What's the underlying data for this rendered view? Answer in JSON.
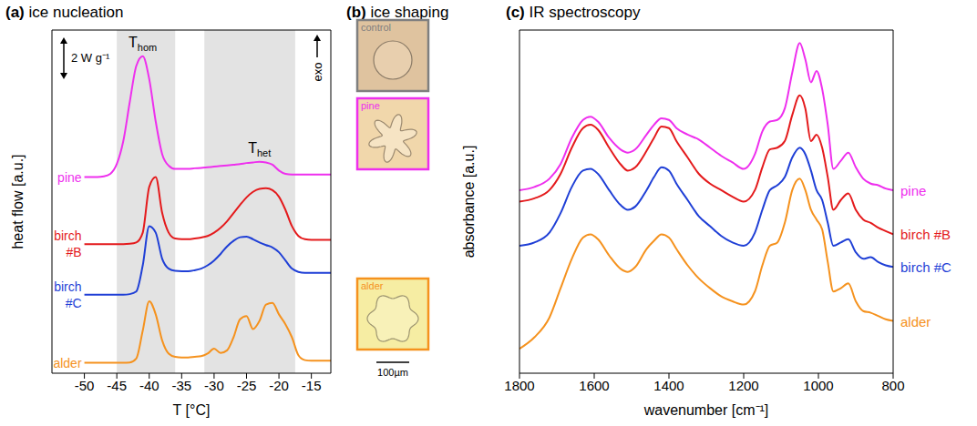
{
  "chart_data": [
    {
      "type": "line",
      "letter": "(a)",
      "title": "ice nucleation",
      "x_label": "T [°C]",
      "y_label": "heat flow [a.u.]",
      "x": [
        -50,
        -49,
        -48,
        -47,
        -46,
        -45,
        -44,
        -43,
        -42,
        -41,
        -40,
        -39,
        -38,
        -37,
        -36,
        -35,
        -34,
        -33,
        -32,
        -31,
        -30,
        -29,
        -28,
        -27,
        -26,
        -25,
        -24,
        -23,
        -22,
        -21,
        -20,
        -19,
        -18,
        -17,
        -16,
        -15,
        -14,
        -13,
        -12
      ],
      "series": [
        {
          "name": "pine",
          "color": "#ee2fee",
          "values": [
            6.0,
            6.0,
            6.0,
            6.02,
            6.1,
            6.4,
            7.1,
            8.3,
            9.4,
            9.7,
            9.0,
            7.7,
            6.7,
            6.35,
            6.25,
            6.25,
            6.25,
            6.27,
            6.28,
            6.3,
            6.32,
            6.34,
            6.36,
            6.38,
            6.4,
            6.43,
            6.45,
            6.47,
            6.45,
            6.38,
            6.2,
            6.1,
            6.08,
            6.08,
            6.08,
            6.08,
            6.08,
            6.08,
            6.08
          ]
        },
        {
          "name": "birch #B",
          "color": "#e41a1c",
          "values": [
            3.95,
            3.95,
            3.95,
            3.95,
            3.95,
            3.95,
            3.95,
            3.96,
            4.0,
            4.3,
            5.7,
            6.0,
            4.9,
            4.3,
            4.12,
            4.1,
            4.1,
            4.12,
            4.15,
            4.2,
            4.3,
            4.45,
            4.65,
            4.9,
            5.15,
            5.38,
            5.55,
            5.64,
            5.66,
            5.6,
            5.4,
            5.0,
            4.5,
            4.2,
            4.1,
            4.08,
            4.08,
            4.08,
            4.08
          ]
        },
        {
          "name": "birch #C",
          "color": "#1f3fd6",
          "values": [
            2.4,
            2.4,
            2.4,
            2.4,
            2.4,
            2.4,
            2.4,
            2.42,
            2.5,
            3.3,
            4.5,
            4.3,
            3.5,
            3.2,
            3.13,
            3.12,
            3.12,
            3.15,
            3.2,
            3.3,
            3.45,
            3.65,
            3.88,
            4.05,
            4.16,
            4.18,
            4.1,
            4.0,
            3.92,
            3.85,
            3.7,
            3.45,
            3.2,
            3.1,
            3.07,
            3.07,
            3.07,
            3.07,
            3.07
          ]
        },
        {
          "name": "alder",
          "color": "#f5921e",
          "values": [
            0.32,
            0.32,
            0.32,
            0.32,
            0.32,
            0.32,
            0.32,
            0.33,
            0.45,
            1.3,
            2.2,
            1.8,
            1.0,
            0.6,
            0.5,
            0.48,
            0.48,
            0.5,
            0.52,
            0.6,
            0.75,
            0.62,
            0.7,
            1.1,
            1.65,
            1.75,
            1.35,
            1.6,
            2.1,
            2.15,
            1.8,
            1.5,
            1.1,
            0.55,
            0.4,
            0.38,
            0.38,
            0.38,
            0.38
          ]
        }
      ],
      "xlim": [
        -55,
        -12
      ],
      "xticks": [
        -50,
        -45,
        -40,
        -35,
        -30,
        -25,
        -20,
        -15
      ],
      "ylim": [
        0,
        10.5
      ],
      "tick_labels": "x",
      "shaded_ranges": [
        [
          -45,
          -36
        ],
        [
          -31.5,
          -17.5
        ]
      ],
      "annotations": [
        {
          "text": "T",
          "sub": "hom"
        },
        {
          "text": "T",
          "sub": "het"
        }
      ],
      "scale_bar": "2 W g⁻¹",
      "exo": "exo"
    },
    {
      "type": "image",
      "letter": "(b)",
      "title": "ice shaping",
      "images": [
        {
          "label": "control",
          "color": "#7f7f7f"
        },
        {
          "label": "pine",
          "color": "#ee2fee"
        },
        {
          "label": "alder",
          "color": "#f5921e"
        }
      ],
      "scale_bar": "100µm"
    },
    {
      "type": "line",
      "letter": "(c)",
      "title": "IR spectroscopy",
      "x_label": "wavenumber [cm⁻¹]",
      "y_label": "absorbance [a.u.]",
      "x": [
        1800,
        1760,
        1720,
        1690,
        1660,
        1630,
        1610,
        1590,
        1560,
        1530,
        1510,
        1490,
        1460,
        1440,
        1420,
        1400,
        1380,
        1350,
        1320,
        1290,
        1260,
        1230,
        1200,
        1170,
        1150,
        1130,
        1110,
        1090,
        1070,
        1050,
        1035,
        1020,
        1005,
        990,
        975,
        960,
        940,
        920,
        900,
        880,
        860,
        840,
        820,
        800
      ],
      "series": [
        {
          "name": "pine",
          "color": "#ee2fee",
          "values": [
            5.6,
            5.7,
            5.95,
            6.4,
            7.2,
            7.75,
            7.85,
            7.7,
            7.2,
            6.85,
            6.75,
            6.85,
            7.3,
            7.6,
            7.8,
            7.75,
            7.5,
            7.3,
            7.15,
            6.9,
            6.65,
            6.45,
            6.25,
            6.7,
            7.4,
            7.7,
            7.75,
            8.1,
            9.2,
            10.1,
            9.6,
            8.9,
            9.25,
            8.7,
            7.6,
            6.25,
            6.5,
            6.75,
            6.3,
            5.95,
            5.8,
            5.75,
            5.65,
            5.6
          ]
        },
        {
          "name": "birch #B",
          "color": "#e41a1c",
          "values": [
            5.25,
            5.35,
            5.6,
            6.1,
            6.9,
            7.5,
            7.6,
            7.45,
            6.9,
            6.4,
            6.2,
            6.3,
            6.8,
            7.2,
            7.55,
            7.5,
            7.1,
            6.6,
            6.1,
            5.8,
            5.6,
            5.4,
            5.25,
            5.6,
            6.3,
            6.85,
            6.9,
            7.1,
            7.9,
            8.5,
            8.1,
            7.1,
            7.3,
            6.9,
            6.0,
            5.0,
            5.3,
            5.5,
            5.0,
            4.7,
            4.6,
            4.45,
            4.35,
            4.25
          ]
        },
        {
          "name": "birch #C",
          "color": "#1f3fd6",
          "values": [
            3.9,
            4.0,
            4.3,
            4.9,
            5.7,
            6.2,
            6.25,
            6.1,
            5.6,
            5.15,
            5.0,
            5.1,
            5.6,
            6.0,
            6.3,
            6.2,
            5.8,
            5.3,
            4.8,
            4.5,
            4.2,
            4.0,
            3.9,
            4.3,
            5.0,
            5.6,
            5.75,
            6.0,
            6.6,
            6.9,
            6.7,
            6.2,
            5.6,
            5.3,
            4.6,
            3.9,
            4.0,
            4.1,
            3.7,
            3.5,
            3.55,
            3.4,
            3.3,
            3.25
          ]
        },
        {
          "name": "alder",
          "color": "#f5921e",
          "values": [
            0.75,
            1.1,
            1.7,
            2.6,
            3.5,
            4.15,
            4.25,
            4.1,
            3.6,
            3.2,
            3.1,
            3.25,
            3.8,
            4.05,
            4.25,
            4.15,
            3.8,
            3.3,
            2.9,
            2.6,
            2.35,
            2.2,
            2.1,
            2.5,
            3.3,
            3.9,
            4.0,
            4.6,
            5.6,
            5.95,
            5.6,
            5.0,
            4.7,
            4.4,
            3.4,
            2.5,
            2.6,
            2.75,
            2.2,
            1.9,
            1.85,
            1.75,
            1.65,
            1.6
          ]
        }
      ],
      "xlim": [
        1800,
        800
      ],
      "xticks": [
        1800,
        1600,
        1400,
        1200,
        1000,
        800
      ],
      "ylim": [
        0,
        10.5
      ],
      "tick_labels": "x"
    }
  ]
}
